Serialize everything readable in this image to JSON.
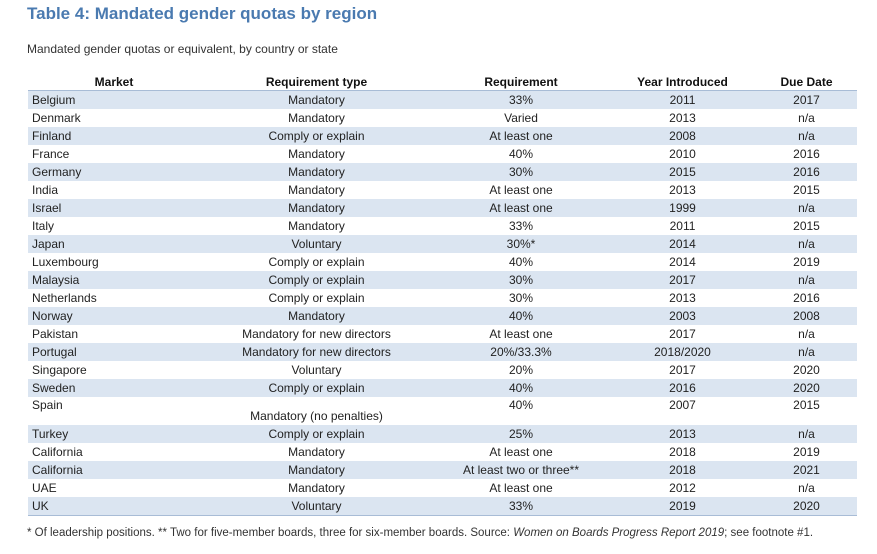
{
  "title": "Table 4: Mandated gender quotas by region",
  "subtitle": "Mandated gender quotas or equivalent, by country or state",
  "columns": [
    "Market",
    "Requirement type",
    "Requirement",
    "Year Introduced",
    "Due Date"
  ],
  "rows": [
    {
      "market": "Belgium",
      "type": "Mandatory",
      "requirement": "33%",
      "year": "2011",
      "due": "2017"
    },
    {
      "market": "Denmark",
      "type": "Mandatory",
      "requirement": "Varied",
      "year": "2013",
      "due": "n/a"
    },
    {
      "market": "Finland",
      "type": "Comply or explain",
      "requirement": "At least one",
      "year": "2008",
      "due": "n/a"
    },
    {
      "market": "France",
      "type": "Mandatory",
      "requirement": "40%",
      "year": "2010",
      "due": "2016"
    },
    {
      "market": "Germany",
      "type": "Mandatory",
      "requirement": "30%",
      "year": "2015",
      "due": "2016"
    },
    {
      "market": "India",
      "type": "Mandatory",
      "requirement": "At least one",
      "year": "2013",
      "due": "2015"
    },
    {
      "market": "Israel",
      "type": "Mandatory",
      "requirement": "At least one",
      "year": "1999",
      "due": "n/a"
    },
    {
      "market": "Italy",
      "type": "Mandatory",
      "requirement": "33%",
      "year": "2011",
      "due": "2015"
    },
    {
      "market": "Japan",
      "type": "Voluntary",
      "requirement": "30%*",
      "year": "2014",
      "due": "n/a"
    },
    {
      "market": "Luxembourg",
      "type": "Comply or explain",
      "requirement": "40%",
      "year": "2014",
      "due": "2019"
    },
    {
      "market": "Malaysia",
      "type": "Comply or explain",
      "requirement": "30%",
      "year": "2017",
      "due": "n/a"
    },
    {
      "market": "Netherlands",
      "type": "Comply or explain",
      "requirement": "30%",
      "year": "2013",
      "due": "2016"
    },
    {
      "market": "Norway",
      "type": "Mandatory",
      "requirement": "40%",
      "year": "2003",
      "due": "2008"
    },
    {
      "market": "Pakistan",
      "type": "Mandatory for new directors",
      "requirement": "At least one",
      "year": "2017",
      "due": "n/a"
    },
    {
      "market": "Portugal",
      "type": "Mandatory for new directors",
      "requirement": "20%/33.3%",
      "year": "2018/2020",
      "due": "n/a"
    },
    {
      "market": "Singapore",
      "type": "Voluntary",
      "requirement": "20%",
      "year": "2017",
      "due": "2020"
    },
    {
      "market": "Sweden",
      "type": "Comply or explain",
      "requirement": "40%",
      "year": "2016",
      "due": "2020"
    },
    {
      "market": "Spain",
      "type": "Mandatory (no penalties)",
      "requirement": "40%",
      "year": "2007",
      "due": "2015"
    },
    {
      "market": "Turkey",
      "type": "Comply or explain",
      "requirement": "25%",
      "year": "2013",
      "due": "n/a"
    },
    {
      "market": "California",
      "type": "Mandatory",
      "requirement": "At least one",
      "year": "2018",
      "due": "2019"
    },
    {
      "market": "California",
      "type": "Mandatory",
      "requirement": "At least two or three**",
      "year": "2018",
      "due": "2021"
    },
    {
      "market": "UAE",
      "type": "Mandatory",
      "requirement": "At least one",
      "year": "2012",
      "due": "n/a"
    },
    {
      "market": "UK",
      "type": "Voluntary",
      "requirement": "33%",
      "year": "2019",
      "due": "2020"
    }
  ],
  "footnote": {
    "prefix": "* Of leadership positions. ** Two for five-member boards, three for six-member boards. Source: ",
    "source_title": "Women on Boards Progress Report 2019",
    "suffix": "; see footnote #1."
  },
  "colors": {
    "title": "#4a7ab0",
    "row_band": "#dbe5f1",
    "rule": "#a8bcd6"
  }
}
